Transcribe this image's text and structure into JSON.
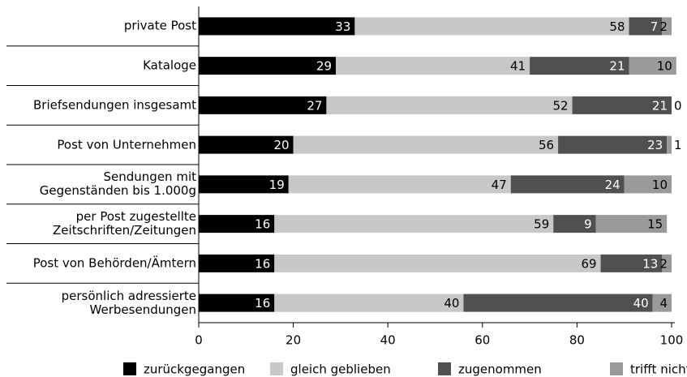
{
  "chart_data": {
    "type": "stacked-barh",
    "categories": [
      "private Post",
      "Kataloge",
      "Briefsendungen insgesamt",
      "Post von Unternehmen",
      "Sendungen mit\nGegenständen bis 1.000g",
      "per Post zugestellte\nZeitschriften/Zeitungen",
      "Post von Behörden/Ämtern",
      "persönlich adressierte\nWerbesendungen"
    ],
    "series": [
      {
        "name": "zurückgegangen",
        "color": "#000000",
        "values": [
          33,
          29,
          27,
          20,
          19,
          16,
          16,
          16
        ]
      },
      {
        "name": "gleich geblieben",
        "color": "#c8c8c8",
        "values": [
          58,
          41,
          52,
          56,
          47,
          59,
          69,
          40
        ]
      },
      {
        "name": "zugenommen",
        "color": "#505050",
        "values": [
          7,
          21,
          21,
          23,
          24,
          9,
          13,
          40
        ]
      },
      {
        "name": "trifft nicht zu",
        "color": "#9a9a9a",
        "values": [
          2,
          10,
          0,
          1,
          10,
          15,
          2,
          4
        ]
      }
    ],
    "xlim": [
      0,
      100
    ],
    "xticks": [
      0,
      20,
      40,
      60,
      80,
      100
    ],
    "legend": "bottom"
  }
}
